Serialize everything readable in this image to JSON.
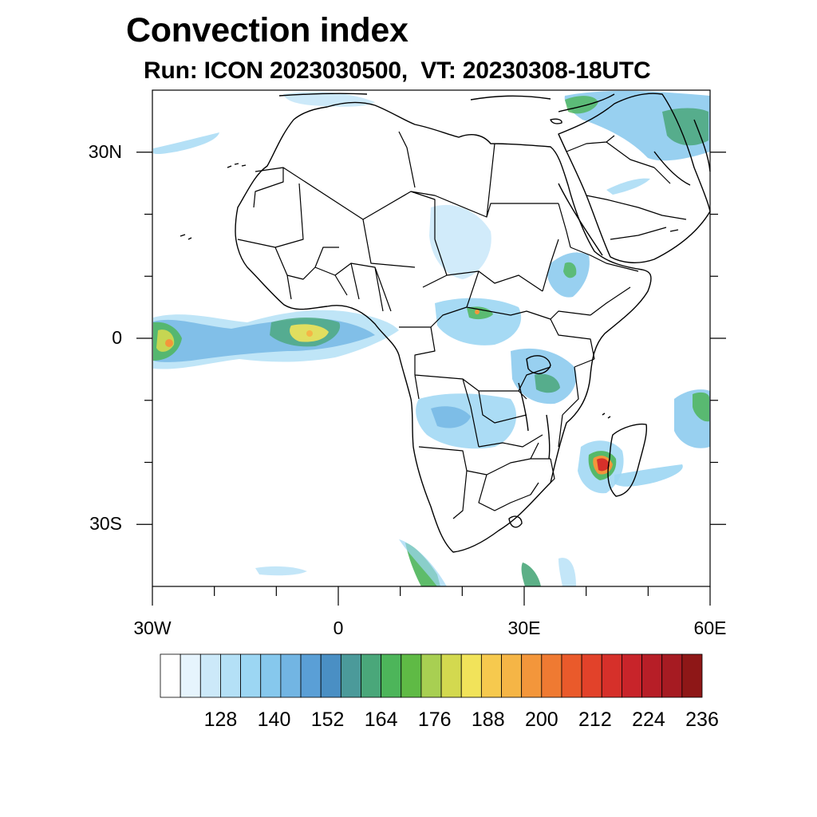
{
  "title": "Convection index",
  "subtitle": "Run: ICON 2023030500,  VT: 20230308-18UTC",
  "map": {
    "extent": {
      "lon_min": -30,
      "lon_max": 60,
      "lat_min": -40,
      "lat_max": 40
    },
    "lat_labels": [
      {
        "text": "30N",
        "lat": 30
      },
      {
        "text": "0",
        "lat": 0
      },
      {
        "text": "30S",
        "lat": -30
      }
    ],
    "lon_labels": [
      {
        "text": "30W",
        "lon": -30
      },
      {
        "text": "0",
        "lon": 0
      },
      {
        "text": "30E",
        "lon": 30
      },
      {
        "text": "60E",
        "lon": 60
      }
    ]
  },
  "colorbar": {
    "colors": [
      "#ffffff",
      "#e6f4fd",
      "#cce9f9",
      "#b4e0f6",
      "#9cd6f3",
      "#86c8ed",
      "#72b5e3",
      "#5a9fd6",
      "#4a8fc4",
      "#4b9a9a",
      "#4aa77a",
      "#4db55a",
      "#5fba45",
      "#a8cf52",
      "#d3d94f",
      "#f1e35a",
      "#f6c94e",
      "#f5b546",
      "#f3963b",
      "#ef7a32",
      "#ea5a2b",
      "#e2422a",
      "#d6302a",
      "#c8242a",
      "#b71e27",
      "#a61b22",
      "#8e1717"
    ],
    "labels": [
      "128",
      "140",
      "152",
      "164",
      "176",
      "188",
      "200",
      "212",
      "224",
      "236"
    ]
  }
}
